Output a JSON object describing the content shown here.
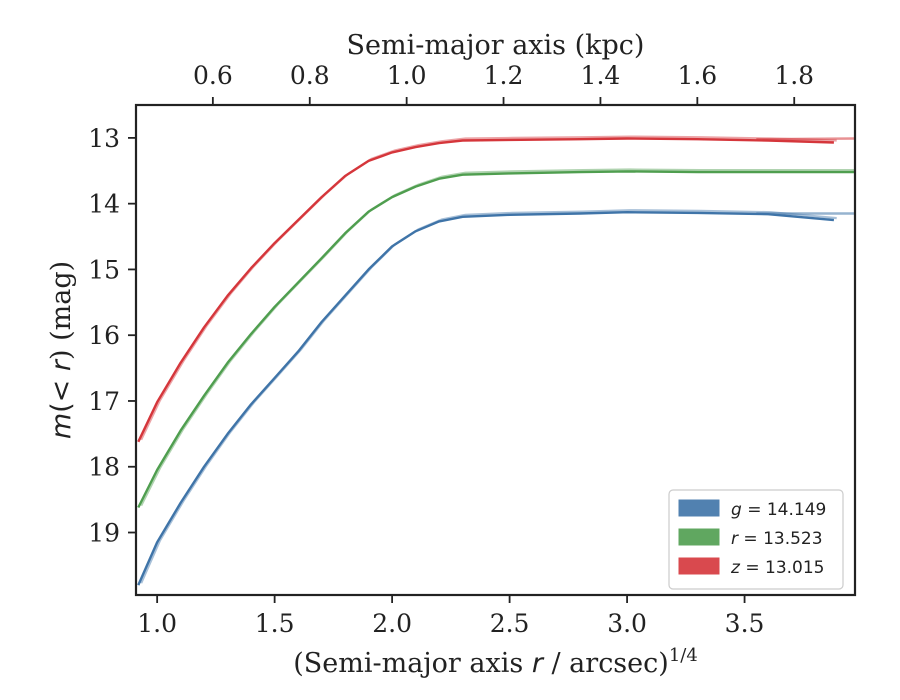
{
  "chart_data": {
    "type": "line",
    "title": "",
    "xlabel": "(Semi-major axis r / arcsec)^{1/4}",
    "xlabel_parts": {
      "prefix": "(Semi-major axis ",
      "var": "r",
      "mid": " / arcsec)",
      "sup": "1/4"
    },
    "x2label": "Semi-major axis (kpc)",
    "ylabel": "m(<r) (mag)",
    "ylabel_parts": {
      "m": "m",
      "lt": "(< ",
      "r": "r",
      "rest": ") (mag)"
    },
    "xlim": [
      0.91,
      3.97
    ],
    "ylim": [
      19.95,
      12.5
    ],
    "y_inverted": true,
    "x_ticks": [
      1.0,
      1.5,
      2.0,
      2.5,
      3.0,
      3.5
    ],
    "x_tick_labels": [
      "1.0",
      "1.5",
      "2.0",
      "2.5",
      "3.0",
      "3.5"
    ],
    "y_ticks": [
      13,
      14,
      15,
      16,
      17,
      18,
      19
    ],
    "y_tick_labels": [
      "13",
      "14",
      "15",
      "16",
      "17",
      "18",
      "19"
    ],
    "x2_ticks": [
      0.6,
      0.8,
      1.0,
      1.2,
      1.4,
      1.6,
      1.8
    ],
    "x2_tick_labels": [
      "0.6",
      "0.8",
      "1.0",
      "1.2",
      "1.4",
      "1.6",
      "1.8"
    ],
    "x2_per_x": 0.485,
    "grid": false,
    "legend_position": "lower-right",
    "series": [
      {
        "name": "g",
        "legend_label": "g = 14.149",
        "legend_var": "g",
        "legend_val": "14.149",
        "color": "#3f74a8",
        "points": [
          [
            0.92,
            19.8
          ],
          [
            1.0,
            19.15
          ],
          [
            1.1,
            18.55
          ],
          [
            1.2,
            18.0
          ],
          [
            1.3,
            17.5
          ],
          [
            1.4,
            17.05
          ],
          [
            1.5,
            16.65
          ],
          [
            1.6,
            16.25
          ],
          [
            1.7,
            15.8
          ],
          [
            1.8,
            15.4
          ],
          [
            1.9,
            15.0
          ],
          [
            2.0,
            14.65
          ],
          [
            2.1,
            14.42
          ],
          [
            2.2,
            14.27
          ],
          [
            2.3,
            14.2
          ],
          [
            2.5,
            14.17
          ],
          [
            2.8,
            14.15
          ],
          [
            3.0,
            14.13
          ],
          [
            3.3,
            14.14
          ],
          [
            3.6,
            14.16
          ],
          [
            3.88,
            14.25
          ]
        ],
        "extension_points": [
          [
            3.55,
            14.15
          ],
          [
            3.97,
            14.15
          ]
        ]
      },
      {
        "name": "r",
        "legend_label": "r = 13.523",
        "legend_var": "r",
        "legend_val": "13.523",
        "color": "#4f9e4f",
        "points": [
          [
            0.92,
            18.62
          ],
          [
            1.0,
            18.05
          ],
          [
            1.1,
            17.45
          ],
          [
            1.2,
            16.92
          ],
          [
            1.3,
            16.42
          ],
          [
            1.4,
            15.98
          ],
          [
            1.5,
            15.57
          ],
          [
            1.6,
            15.2
          ],
          [
            1.7,
            14.83
          ],
          [
            1.8,
            14.45
          ],
          [
            1.9,
            14.12
          ],
          [
            2.0,
            13.9
          ],
          [
            2.1,
            13.74
          ],
          [
            2.2,
            13.62
          ],
          [
            2.3,
            13.56
          ],
          [
            2.5,
            13.54
          ],
          [
            2.8,
            13.52
          ],
          [
            3.0,
            13.51
          ],
          [
            3.3,
            13.52
          ],
          [
            3.6,
            13.52
          ],
          [
            3.97,
            13.52
          ]
        ],
        "extension_points": []
      },
      {
        "name": "z",
        "legend_label": "z = 13.015",
        "legend_var": "z",
        "legend_val": "13.015",
        "color": "#d5363b",
        "points": [
          [
            0.92,
            17.62
          ],
          [
            1.0,
            17.02
          ],
          [
            1.1,
            16.42
          ],
          [
            1.2,
            15.88
          ],
          [
            1.3,
            15.4
          ],
          [
            1.4,
            14.98
          ],
          [
            1.5,
            14.6
          ],
          [
            1.6,
            14.25
          ],
          [
            1.7,
            13.9
          ],
          [
            1.8,
            13.58
          ],
          [
            1.9,
            13.35
          ],
          [
            2.0,
            13.22
          ],
          [
            2.1,
            13.14
          ],
          [
            2.2,
            13.08
          ],
          [
            2.3,
            13.04
          ],
          [
            2.5,
            13.03
          ],
          [
            2.8,
            13.02
          ],
          [
            3.0,
            13.01
          ],
          [
            3.3,
            13.02
          ],
          [
            3.6,
            13.04
          ],
          [
            3.88,
            13.07
          ]
        ],
        "extension_points": [
          [
            3.55,
            13.02
          ],
          [
            3.97,
            13.01
          ]
        ]
      }
    ]
  }
}
